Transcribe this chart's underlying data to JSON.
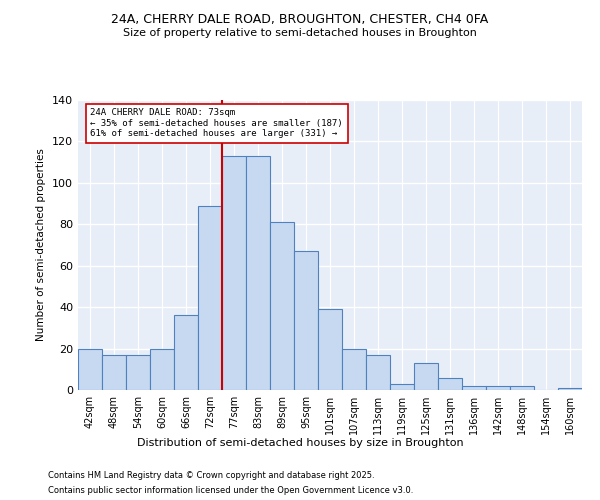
{
  "title1": "24A, CHERRY DALE ROAD, BROUGHTON, CHESTER, CH4 0FA",
  "title2": "Size of property relative to semi-detached houses in Broughton",
  "xlabel": "Distribution of semi-detached houses by size in Broughton",
  "ylabel": "Number of semi-detached properties",
  "categories": [
    "42sqm",
    "48sqm",
    "54sqm",
    "60sqm",
    "66sqm",
    "72sqm",
    "77sqm",
    "83sqm",
    "89sqm",
    "95sqm",
    "101sqm",
    "107sqm",
    "113sqm",
    "119sqm",
    "125sqm",
    "131sqm",
    "136sqm",
    "142sqm",
    "148sqm",
    "154sqm",
    "160sqm"
  ],
  "values": [
    20,
    17,
    17,
    20,
    36,
    89,
    113,
    113,
    81,
    67,
    39,
    20,
    17,
    3,
    13,
    6,
    2,
    2,
    2,
    0,
    1
  ],
  "bar_color": "#c6d9f1",
  "bar_edge_color": "#4f81bd",
  "vline_color": "#cc0000",
  "annotation_text": "24A CHERRY DALE ROAD: 73sqm\n← 35% of semi-detached houses are smaller (187)\n61% of semi-detached houses are larger (331) →",
  "annotation_box_color": "#ffffff",
  "annotation_box_edge": "#cc0000",
  "ylim": [
    0,
    140
  ],
  "yticks": [
    0,
    20,
    40,
    60,
    80,
    100,
    120,
    140
  ],
  "background_color": "#e8eef8",
  "grid_color": "#ffffff",
  "footer1": "Contains HM Land Registry data © Crown copyright and database right 2025.",
  "footer2": "Contains public sector information licensed under the Open Government Licence v3.0."
}
